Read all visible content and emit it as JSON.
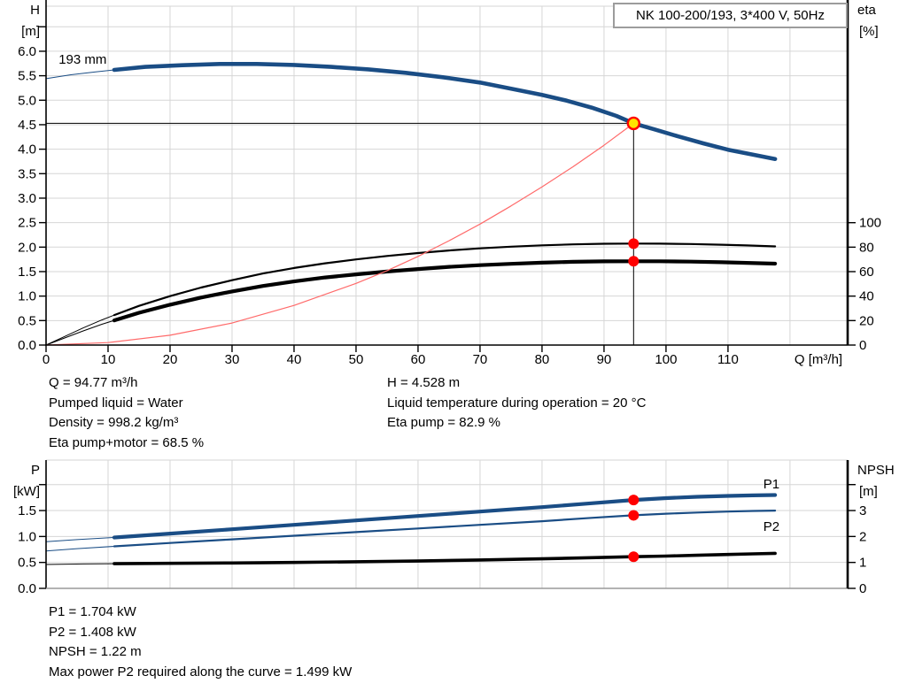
{
  "title_box": {
    "label": "NK 100-200/193, 3*400 V, 50Hz"
  },
  "info_top": {
    "left": [
      "Q = 94.77 m³/h",
      "Pumped liquid = Water",
      "Density = 998.2 kg/m³",
      "Eta pump+motor = 68.5 %"
    ],
    "right": [
      "H = 4.528 m",
      "Liquid temperature during operation = 20 °C",
      "Eta pump = 82.9 %"
    ]
  },
  "info_bottom": [
    "P1 = 1.704 kW",
    "P2 = 1.408 kW",
    "NPSH = 1.22 m",
    "Max power P2 required along the curve = 1.499 kW"
  ],
  "colors": {
    "curve_blue": "#1a4d85",
    "curve_black": "#000000",
    "system_red": "#ff6a6a",
    "dot_red": "#ff0000",
    "duty_yellow": "#ffe600",
    "grid": "#d6d6d6",
    "axis": "#000000",
    "axis_light": "#9a9a9a"
  },
  "chart_data": [
    {
      "type": "line",
      "name": "qh-eta-chart",
      "title": "NK 100-200/193, 3*400 V, 50Hz",
      "x_axis": {
        "title": "Q [m³/h]",
        "title_x": 924,
        "min": 0,
        "max": 129.3,
        "ticks": [
          [
            0,
            "0"
          ],
          [
            10,
            "10"
          ],
          [
            20,
            "20"
          ],
          [
            30,
            "30"
          ],
          [
            40,
            "40"
          ],
          [
            50,
            "50"
          ],
          [
            60,
            "60"
          ],
          [
            70,
            "70"
          ],
          [
            80,
            "80"
          ],
          [
            90,
            "90"
          ],
          [
            100,
            "100"
          ],
          [
            110,
            "110"
          ]
        ],
        "grid_extra": [
          120
        ]
      },
      "y_left": {
        "title": [
          "H",
          "[m]"
        ],
        "min": 0,
        "max": 6.92,
        "ticks": [
          [
            0,
            "0.0"
          ],
          [
            0.5,
            "0.5"
          ],
          [
            1,
            "1.0"
          ],
          [
            1.5,
            "1.5"
          ],
          [
            2,
            "2.0"
          ],
          [
            2.5,
            "2.5"
          ],
          [
            3,
            "3.0"
          ],
          [
            3.5,
            "3.5"
          ],
          [
            4,
            "4.0"
          ],
          [
            4.5,
            "4.5"
          ],
          [
            5,
            "5.0"
          ],
          [
            5.5,
            "5.5"
          ],
          [
            6,
            "6.0"
          ],
          [
            6.5,
            null
          ]
        ]
      },
      "y_right": {
        "title": [
          "eta",
          "[%]"
        ],
        "min": 0,
        "max": 276.9,
        "ticks": [
          [
            0,
            "0"
          ],
          [
            20,
            "20"
          ],
          [
            40,
            "40"
          ],
          [
            60,
            "60"
          ],
          [
            80,
            "80"
          ],
          [
            100,
            "100"
          ]
        ]
      },
      "show_x_tick_labels": true,
      "overshoot_top": 7,
      "bottom_axis": "axis",
      "series": [
        {
          "name": "qh-curve",
          "axis": "left",
          "color_key": "curve_blue",
          "width": 4.6,
          "thin_until": 11,
          "points": [
            [
              0,
              5.44
            ],
            [
              4,
              5.52
            ],
            [
              8,
              5.58
            ],
            [
              11,
              5.62
            ],
            [
              16,
              5.68
            ],
            [
              22,
              5.715
            ],
            [
              28,
              5.74
            ],
            [
              34,
              5.74
            ],
            [
              40,
              5.72
            ],
            [
              46,
              5.68
            ],
            [
              52,
              5.63
            ],
            [
              58,
              5.56
            ],
            [
              64,
              5.47
            ],
            [
              70,
              5.36
            ],
            [
              76,
              5.21
            ],
            [
              80,
              5.11
            ],
            [
              84,
              4.99
            ],
            [
              88,
              4.85
            ],
            [
              92,
              4.68
            ],
            [
              94.77,
              4.528
            ],
            [
              98,
              4.41
            ],
            [
              102,
              4.26
            ],
            [
              106,
              4.12
            ],
            [
              110,
              3.99
            ],
            [
              114,
              3.89
            ],
            [
              117.6,
              3.8
            ]
          ]
        },
        {
          "name": "eta-pump-curve",
          "axis": "right",
          "color_key": "curve_black",
          "width": 2.2,
          "thin_until": 11,
          "points": [
            [
              0,
              0
            ],
            [
              3,
              7
            ],
            [
              6,
              14
            ],
            [
              9,
              20.5
            ],
            [
              11,
              24.5
            ],
            [
              15,
              32
            ],
            [
              20,
              40
            ],
            [
              25,
              47
            ],
            [
              30,
              53
            ],
            [
              35,
              58.5
            ],
            [
              40,
              63
            ],
            [
              45,
              66.8
            ],
            [
              50,
              70
            ],
            [
              55,
              72.8
            ],
            [
              60,
              75.2
            ],
            [
              65,
              77.3
            ],
            [
              70,
              79
            ],
            [
              75,
              80.4
            ],
            [
              80,
              81.5
            ],
            [
              85,
              82.3
            ],
            [
              90,
              82.75
            ],
            [
              94.77,
              82.9
            ],
            [
              99,
              82.85
            ],
            [
              104,
              82.55
            ],
            [
              109,
              82
            ],
            [
              113,
              81.4
            ],
            [
              117.6,
              80.6
            ]
          ]
        },
        {
          "name": "eta-pump-motor-curve",
          "axis": "right",
          "color_key": "curve_black",
          "width": 4.2,
          "thin_until": 11,
          "points": [
            [
              0,
              0
            ],
            [
              3,
              5.8
            ],
            [
              6,
              11.6
            ],
            [
              9,
              17
            ],
            [
              11,
              20.2
            ],
            [
              15,
              26.4
            ],
            [
              20,
              33
            ],
            [
              25,
              38.8
            ],
            [
              30,
              43.8
            ],
            [
              35,
              48.3
            ],
            [
              40,
              52
            ],
            [
              45,
              55.2
            ],
            [
              50,
              57.8
            ],
            [
              55,
              60.1
            ],
            [
              60,
              62.1
            ],
            [
              65,
              63.9
            ],
            [
              70,
              65.3
            ],
            [
              75,
              66.4
            ],
            [
              80,
              67.3
            ],
            [
              85,
              68
            ],
            [
              90,
              68.4
            ],
            [
              94.77,
              68.5
            ],
            [
              99,
              68.45
            ],
            [
              104,
              68.2
            ],
            [
              109,
              67.7
            ],
            [
              113,
              67.2
            ],
            [
              117.6,
              66.5
            ]
          ]
        },
        {
          "name": "system-curve",
          "axis": "left",
          "color_key": "system_red",
          "width": 1.2,
          "points": [
            [
              0,
              0
            ],
            [
              10,
              0.05
            ],
            [
              20,
              0.2
            ],
            [
              30,
              0.45
            ],
            [
              40,
              0.81
            ],
            [
              50,
              1.26
            ],
            [
              55,
              1.52
            ],
            [
              60,
              1.81
            ],
            [
              65,
              2.13
            ],
            [
              70,
              2.47
            ],
            [
              75,
              2.84
            ],
            [
              80,
              3.23
            ],
            [
              85,
              3.64
            ],
            [
              90,
              4.08
            ],
            [
              94.77,
              4.528
            ]
          ]
        }
      ],
      "crosshair": {
        "q": 94.77,
        "value": 4.528,
        "axis": "left"
      },
      "duty_point": {
        "q": 94.77,
        "value": 4.528,
        "axis": "left"
      },
      "dots": [
        {
          "q": 94.77,
          "value": 82.9,
          "axis": "right"
        },
        {
          "q": 94.77,
          "value": 68.5,
          "axis": "right"
        }
      ],
      "curve_labels": [
        {
          "text": "193 mm",
          "q": 5.9,
          "value": 5.75,
          "axis": "left",
          "color_key": "curve_black"
        }
      ]
    },
    {
      "type": "line",
      "name": "power-npsh-chart",
      "x_axis": {
        "title": null,
        "min": 0,
        "max": 129.3,
        "ticks": [
          [
            0,
            null
          ],
          [
            10,
            null
          ],
          [
            20,
            null
          ],
          [
            30,
            null
          ],
          [
            40,
            null
          ],
          [
            50,
            null
          ],
          [
            60,
            null
          ],
          [
            70,
            null
          ],
          [
            80,
            null
          ],
          [
            90,
            null
          ],
          [
            100,
            null
          ],
          [
            110,
            null
          ]
        ],
        "grid_extra": [
          120
        ]
      },
      "y_left": {
        "title": [
          "P",
          "[kW]"
        ],
        "min": 0,
        "max": 2.473,
        "ticks": [
          [
            0,
            "0.0"
          ],
          [
            0.5,
            "0.5"
          ],
          [
            1,
            "1.0"
          ],
          [
            1.5,
            "1.5"
          ],
          [
            2,
            null
          ]
        ]
      },
      "y_right": {
        "title": [
          "NPSH",
          "[m]"
        ],
        "min": 0,
        "max": 4.945,
        "ticks": [
          [
            0,
            "0"
          ],
          [
            1,
            "1"
          ],
          [
            2,
            "2"
          ],
          [
            3,
            "3"
          ],
          [
            4,
            null
          ]
        ]
      },
      "show_x_tick_labels": false,
      "overshoot_top": 0,
      "bottom_axis": "axis_light",
      "series": [
        {
          "name": "p1-curve",
          "axis": "left",
          "color_key": "curve_blue",
          "width": 4.2,
          "thin_until": 11,
          "points": [
            [
              0,
              0.9
            ],
            [
              5,
              0.94
            ],
            [
              11,
              0.98
            ],
            [
              20,
              1.055
            ],
            [
              30,
              1.14
            ],
            [
              40,
              1.225
            ],
            [
              50,
              1.31
            ],
            [
              60,
              1.395
            ],
            [
              70,
              1.48
            ],
            [
              80,
              1.565
            ],
            [
              88,
              1.64
            ],
            [
              94.77,
              1.704
            ],
            [
              100,
              1.74
            ],
            [
              105,
              1.765
            ],
            [
              110,
              1.782
            ],
            [
              114,
              1.792
            ],
            [
              117.6,
              1.8
            ]
          ]
        },
        {
          "name": "p2-curve",
          "axis": "left",
          "color_key": "curve_blue",
          "width": 2.2,
          "thin_until": 11,
          "points": [
            [
              0,
              0.72
            ],
            [
              5,
              0.765
            ],
            [
              11,
              0.81
            ],
            [
              20,
              0.875
            ],
            [
              30,
              0.945
            ],
            [
              40,
              1.015
            ],
            [
              50,
              1.085
            ],
            [
              60,
              1.155
            ],
            [
              70,
              1.225
            ],
            [
              80,
              1.295
            ],
            [
              88,
              1.36
            ],
            [
              94.77,
              1.408
            ],
            [
              100,
              1.44
            ],
            [
              105,
              1.462
            ],
            [
              110,
              1.48
            ],
            [
              114,
              1.492
            ],
            [
              117.6,
              1.499
            ]
          ]
        },
        {
          "name": "npsh-curve",
          "axis": "right",
          "color_key": "curve_black",
          "width": 3.6,
          "thin_until": 11,
          "points": [
            [
              0,
              0.92
            ],
            [
              6,
              0.94
            ],
            [
              11,
              0.95
            ],
            [
              20,
              0.965
            ],
            [
              30,
              0.98
            ],
            [
              40,
              1.0
            ],
            [
              50,
              1.025
            ],
            [
              60,
              1.055
            ],
            [
              70,
              1.095
            ],
            [
              80,
              1.14
            ],
            [
              88,
              1.185
            ],
            [
              94.77,
              1.22
            ],
            [
              100,
              1.245
            ],
            [
              105,
              1.275
            ],
            [
              110,
              1.305
            ],
            [
              114,
              1.33
            ],
            [
              117.6,
              1.35
            ]
          ]
        }
      ],
      "dots": [
        {
          "q": 94.77,
          "value": 1.704,
          "axis": "left"
        },
        {
          "q": 94.77,
          "value": 1.408,
          "axis": "left"
        },
        {
          "q": 94.77,
          "value": 1.22,
          "axis": "right"
        }
      ],
      "curve_labels": [
        {
          "text": "P1",
          "q": 117,
          "value": 1.93,
          "axis": "left",
          "color_key": "curve_blue"
        },
        {
          "text": "P2",
          "q": 117,
          "value": 1.11,
          "axis": "left",
          "color_key": "curve_blue"
        }
      ]
    }
  ]
}
